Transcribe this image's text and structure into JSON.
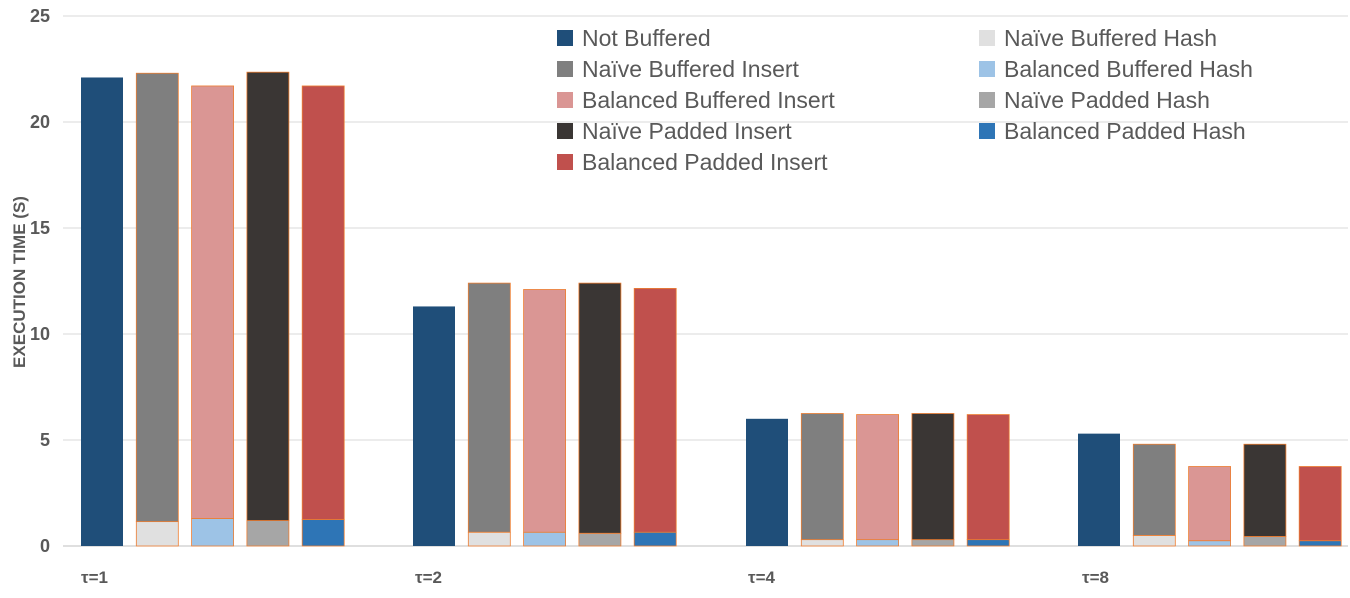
{
  "chart_data": {
    "type": "bar",
    "stacked_pairs": true,
    "ylabel": "EXECUTION TIME (S)",
    "ylim": [
      0,
      25
    ],
    "yticks": [
      0,
      5,
      10,
      15,
      20,
      25
    ],
    "grid": true,
    "legend_position": "top-right",
    "categories": [
      "τ=1",
      "τ=2",
      "τ=4",
      "τ=8"
    ],
    "series": [
      {
        "name": "Not Buffered",
        "color": "#1F4E79",
        "values": [
          22.1,
          11.3,
          6.0,
          5.3
        ]
      },
      {
        "name": "Naïve Buffered Hash",
        "color": "#E0E0E0",
        "values": [
          1.15,
          0.65,
          0.3,
          0.5
        ]
      },
      {
        "name": "Naïve Buffered Insert",
        "color": "#7F7F7F",
        "values": [
          21.15,
          11.75,
          5.95,
          4.3
        ]
      },
      {
        "name": "Balanced Buffered Hash",
        "color": "#9DC3E6",
        "values": [
          1.3,
          0.65,
          0.3,
          0.25
        ]
      },
      {
        "name": "Balanced Buffered Insert",
        "color": "#DA9694",
        "values": [
          20.4,
          11.45,
          5.9,
          3.5
        ]
      },
      {
        "name": "Naïve Padded Hash",
        "color": "#A6A6A6",
        "values": [
          1.2,
          0.6,
          0.3,
          0.45
        ]
      },
      {
        "name": "Naïve Padded Insert",
        "color": "#3A3634",
        "values": [
          21.15,
          11.8,
          5.95,
          4.35
        ]
      },
      {
        "name": "Balanced Padded Hash",
        "color": "#2E75B6",
        "values": [
          1.25,
          0.65,
          0.3,
          0.25
        ]
      },
      {
        "name": "Balanced Padded Insert",
        "color": "#C0504D",
        "values": [
          20.45,
          11.5,
          5.9,
          3.5
        ]
      }
    ],
    "legend_order": [
      "Not Buffered",
      "Naïve Buffered Hash",
      "Naïve Buffered Insert",
      "Balanced Buffered Hash",
      "Balanced Buffered Insert",
      "Naïve Padded Hash",
      "Naïve Padded Insert",
      "Balanced Padded Hash",
      "Balanced Padded Insert"
    ]
  }
}
